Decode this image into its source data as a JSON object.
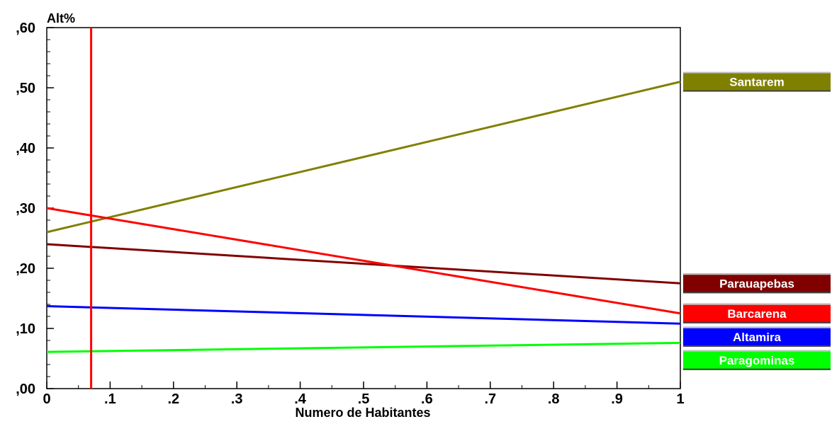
{
  "chart_data": {
    "type": "line",
    "ylabel": "Alt%",
    "xlabel": "Numero de Habitantes",
    "xlim": [
      0,
      1
    ],
    "ylim": [
      0,
      0.6
    ],
    "x_ticks": [
      "0",
      ".1",
      ".2",
      ".3",
      ".4",
      ".5",
      ".6",
      ".7",
      ".8",
      ".9",
      "1"
    ],
    "x_tick_values": [
      0,
      0.1,
      0.2,
      0.3,
      0.4,
      0.5,
      0.6,
      0.7,
      0.8,
      0.9,
      1
    ],
    "y_ticks": [
      ",00",
      ",10",
      ",20",
      ",30",
      ",40",
      ",50",
      ",60"
    ],
    "y_tick_values": [
      0,
      0.1,
      0.2,
      0.3,
      0.4,
      0.5,
      0.6
    ],
    "y_minor_step": 0.02,
    "grid": false,
    "legend_position": "right",
    "reference_line": {
      "x": 0.07,
      "color": "#ff0000"
    },
    "series": [
      {
        "name": "Santarem",
        "color": "#808000",
        "x": [
          0,
          1
        ],
        "y": [
          0.26,
          0.51
        ]
      },
      {
        "name": "Parauapebas",
        "color": "#800000",
        "x": [
          0,
          1
        ],
        "y": [
          0.24,
          0.175
        ]
      },
      {
        "name": "Barcarena",
        "color": "#ff0000",
        "x": [
          0,
          1
        ],
        "y": [
          0.3,
          0.125
        ]
      },
      {
        "name": "Altamira",
        "color": "#0000ff",
        "x": [
          0,
          1
        ],
        "y": [
          0.137,
          0.108
        ]
      },
      {
        "name": "Paragominas",
        "color": "#00ff00",
        "x": [
          0,
          1
        ],
        "y": [
          0.061,
          0.076
        ]
      }
    ]
  }
}
